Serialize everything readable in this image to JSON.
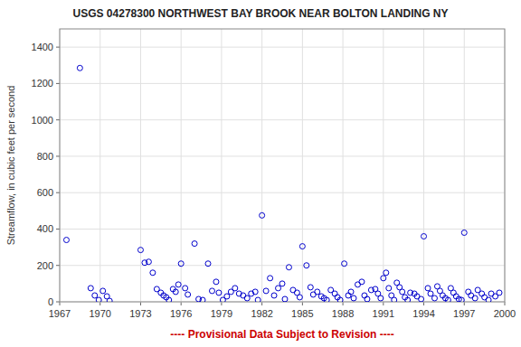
{
  "chart_data": {
    "type": "scatter",
    "title": "USGS 04278300 NORTHWEST BAY BROOK NEAR BOLTON LANDING NY",
    "ylabel": "Streamflow, in cubic feet per second",
    "annotations": [
      {
        "text": "---- Provisional Data Subject to Revision ----",
        "color": "#CC0000"
      }
    ],
    "color": "#0000CC",
    "marker": "open-circle",
    "grid": true,
    "xlim": [
      1967,
      2000
    ],
    "ylim": [
      0,
      1500
    ],
    "xticks": [
      1967,
      1970,
      1973,
      1976,
      1979,
      1982,
      1985,
      1988,
      1991,
      1994,
      1997,
      2000
    ],
    "yticks": [
      0,
      200,
      400,
      600,
      800,
      1000,
      1200,
      1400
    ],
    "x": [
      1967.5,
      1968.5,
      1969.3,
      1969.6,
      1969.9,
      1970.2,
      1970.5,
      1970.7,
      1973.0,
      1973.3,
      1973.6,
      1973.9,
      1974.2,
      1974.5,
      1974.7,
      1974.9,
      1975.1,
      1975.4,
      1975.6,
      1975.8,
      1976.0,
      1976.3,
      1976.5,
      1977.0,
      1977.3,
      1977.6,
      1978.0,
      1978.3,
      1978.6,
      1978.8,
      1979.1,
      1979.4,
      1979.7,
      1980.0,
      1980.3,
      1980.6,
      1980.9,
      1981.2,
      1981.5,
      1981.7,
      1982.0,
      1982.3,
      1982.6,
      1982.9,
      1983.2,
      1983.5,
      1983.7,
      1984.0,
      1984.3,
      1984.6,
      1984.8,
      1985.0,
      1985.3,
      1985.6,
      1985.8,
      1986.1,
      1986.4,
      1986.6,
      1986.8,
      1987.1,
      1987.4,
      1987.6,
      1987.8,
      1988.1,
      1988.4,
      1988.6,
      1988.8,
      1989.1,
      1989.4,
      1989.6,
      1989.8,
      1990.1,
      1990.4,
      1990.6,
      1990.8,
      1991.0,
      1991.2,
      1991.4,
      1991.6,
      1991.8,
      1992.0,
      1992.2,
      1992.4,
      1992.6,
      1992.8,
      1993.0,
      1993.3,
      1993.5,
      1993.8,
      1994.0,
      1994.3,
      1994.5,
      1994.8,
      1995.0,
      1995.2,
      1995.4,
      1995.6,
      1995.8,
      1996.0,
      1996.2,
      1996.4,
      1996.6,
      1996.8,
      1997.0,
      1997.3,
      1997.5,
      1997.8,
      1998.0,
      1998.3,
      1998.5,
      1998.8,
      1999.0,
      1999.3,
      1999.6
    ],
    "values": [
      340,
      1285,
      75,
      35,
      10,
      60,
      30,
      5,
      285,
      215,
      220,
      160,
      70,
      50,
      35,
      25,
      10,
      70,
      55,
      95,
      210,
      75,
      40,
      320,
      15,
      10,
      210,
      60,
      110,
      50,
      10,
      30,
      55,
      75,
      45,
      35,
      20,
      45,
      55,
      10,
      475,
      60,
      130,
      35,
      75,
      100,
      15,
      190,
      65,
      50,
      25,
      305,
      200,
      80,
      40,
      55,
      30,
      20,
      10,
      65,
      45,
      25,
      10,
      210,
      35,
      55,
      20,
      95,
      110,
      35,
      15,
      65,
      70,
      45,
      20,
      130,
      160,
      75,
      35,
      10,
      105,
      80,
      55,
      25,
      10,
      50,
      45,
      30,
      15,
      360,
      75,
      45,
      20,
      85,
      60,
      35,
      20,
      10,
      75,
      50,
      30,
      15,
      10,
      380,
      55,
      35,
      20,
      65,
      45,
      25,
      10,
      45,
      30,
      50
    ]
  }
}
